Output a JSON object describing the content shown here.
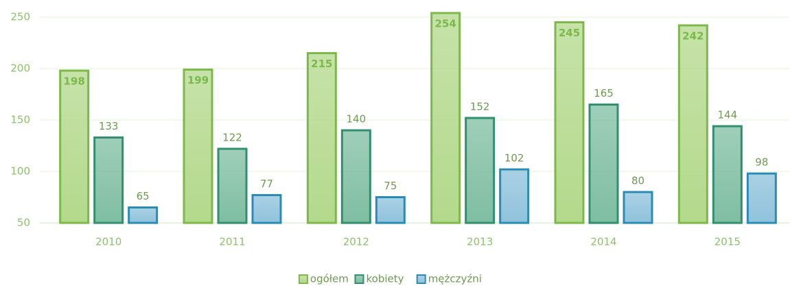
{
  "chart_data": {
    "type": "bar",
    "categories": [
      "2010",
      "2011",
      "2012",
      "2013",
      "2014",
      "2015"
    ],
    "series": [
      {
        "name": "ogółem",
        "color": "#b3d98c",
        "border": "#7cb84a",
        "values": [
          198,
          199,
          215,
          254,
          245,
          242
        ]
      },
      {
        "name": "kobiety",
        "color": "#7fbea2",
        "border": "#2f8f6f",
        "values": [
          133,
          122,
          140,
          152,
          165,
          144
        ]
      },
      {
        "name": "mężczyźni",
        "color": "#8fc2dc",
        "border": "#2a8bb4",
        "values": [
          65,
          77,
          75,
          102,
          80,
          98
        ]
      }
    ],
    "ylim": [
      50,
      262
    ],
    "yticks": [
      50,
      100,
      150,
      200,
      250
    ],
    "grid": true,
    "legend": "bottom"
  }
}
